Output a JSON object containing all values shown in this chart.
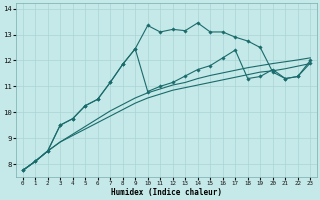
{
  "xlabel": "Humidex (Indice chaleur)",
  "background_color": "#c5e8e8",
  "grid_color": "#aad4d4",
  "line_color": "#1a6b6b",
  "xlim": [
    -0.5,
    23.5
  ],
  "ylim": [
    7.5,
    14.2
  ],
  "xticks": [
    0,
    1,
    2,
    3,
    4,
    5,
    6,
    7,
    8,
    9,
    10,
    11,
    12,
    13,
    14,
    15,
    16,
    17,
    18,
    19,
    20,
    21,
    22,
    23
  ],
  "yticks": [
    8,
    9,
    10,
    11,
    12,
    13,
    14
  ],
  "x_values": [
    0,
    1,
    2,
    3,
    4,
    5,
    6,
    7,
    8,
    9,
    10,
    11,
    12,
    13,
    14,
    15,
    16,
    17,
    18,
    19,
    20,
    21,
    22,
    23
  ],
  "line1_y": [
    7.75,
    8.1,
    8.5,
    8.85,
    9.1,
    9.35,
    9.6,
    9.85,
    10.1,
    10.35,
    10.55,
    10.7,
    10.85,
    10.95,
    11.05,
    11.15,
    11.25,
    11.35,
    11.45,
    11.55,
    11.6,
    11.68,
    11.78,
    11.88
  ],
  "line2_y": [
    7.75,
    8.1,
    8.5,
    8.85,
    9.15,
    9.45,
    9.75,
    10.05,
    10.3,
    10.55,
    10.75,
    10.9,
    11.05,
    11.15,
    11.3,
    11.42,
    11.52,
    11.62,
    11.72,
    11.8,
    11.88,
    11.95,
    12.02,
    12.1
  ],
  "line3_y": [
    7.75,
    8.1,
    8.5,
    9.5,
    9.75,
    10.25,
    10.5,
    11.15,
    11.85,
    12.45,
    10.8,
    11.0,
    11.15,
    11.4,
    11.65,
    11.8,
    12.1,
    12.4,
    11.3,
    11.38,
    11.65,
    11.3,
    11.38,
    11.9
  ],
  "line4_y": [
    7.75,
    8.1,
    8.5,
    9.5,
    9.75,
    10.25,
    10.5,
    11.15,
    11.85,
    12.45,
    13.35,
    13.1,
    13.2,
    13.15,
    13.45,
    13.1,
    13.1,
    12.9,
    12.75,
    12.5,
    11.55,
    11.3,
    11.38,
    12.0
  ]
}
